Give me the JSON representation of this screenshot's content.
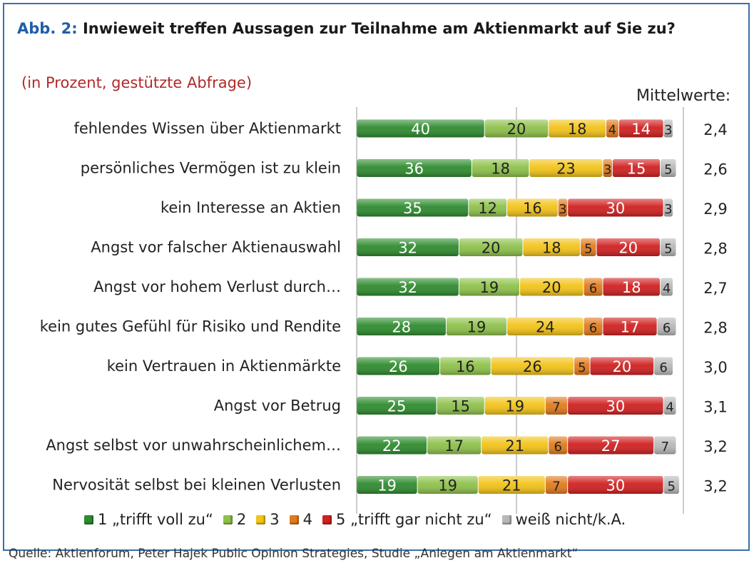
{
  "header": {
    "abb_label": "Abb. 2",
    "title": "Inwieweit treffen Aussagen zur Teilnahme am Aktienmarkt auf Sie zu?",
    "subtitle": "(in Prozent, gestützte Abfrage)",
    "mean_header": "Mittelwerte:"
  },
  "chart_data": {
    "type": "bar",
    "orientation": "horizontal",
    "stacked": true,
    "categories": [
      "fehlendes Wissen über Aktienmarkt",
      "persönliches Vermögen ist zu klein",
      "kein Interesse an Aktien",
      "Angst vor falscher Aktienauswahl",
      "Angst vor hohem Verlust durch…",
      "kein gutes Gefühl für Risiko und Rendite",
      "kein Vertrauen in Aktienmärkte",
      "Angst vor Betrug",
      "Angst selbst vor unwahrscheinlichem…",
      "Nervosität selbst bei kleinen Verlusten"
    ],
    "series": [
      {
        "name": "1 „trifft voll zu“",
        "color": "#2e8b2e",
        "values": [
          40,
          36,
          35,
          32,
          32,
          28,
          26,
          25,
          22,
          19
        ]
      },
      {
        "name": "2",
        "color": "#8dc14a",
        "values": [
          20,
          18,
          12,
          20,
          19,
          19,
          16,
          15,
          17,
          19
        ]
      },
      {
        "name": "3",
        "color": "#f2c318",
        "values": [
          18,
          23,
          16,
          18,
          20,
          24,
          26,
          19,
          21,
          21
        ]
      },
      {
        "name": "4",
        "color": "#e07a1c",
        "values": [
          4,
          3,
          3,
          5,
          6,
          6,
          5,
          7,
          6,
          7
        ]
      },
      {
        "name": "5 „trifft gar nicht zu“",
        "color": "#d02020",
        "values": [
          14,
          15,
          30,
          20,
          18,
          17,
          20,
          30,
          27,
          30
        ]
      },
      {
        "name": "weiß nicht/k.A.",
        "color": "#b8b8b8",
        "values": [
          3,
          5,
          3,
          5,
          4,
          6,
          6,
          4,
          7,
          5
        ]
      }
    ],
    "mean_values": [
      "2,4",
      "2,6",
      "2,9",
      "2,8",
      "2,7",
      "2,8",
      "3,0",
      "3,1",
      "3,2",
      "3,2"
    ],
    "xlim": [
      0,
      100
    ],
    "gridlines": [
      50
    ]
  },
  "source": "Quelle: Aktienforum, Peter Hajek Public Opinion Strategies, Studie „Anlegen am Aktienmarkt“"
}
